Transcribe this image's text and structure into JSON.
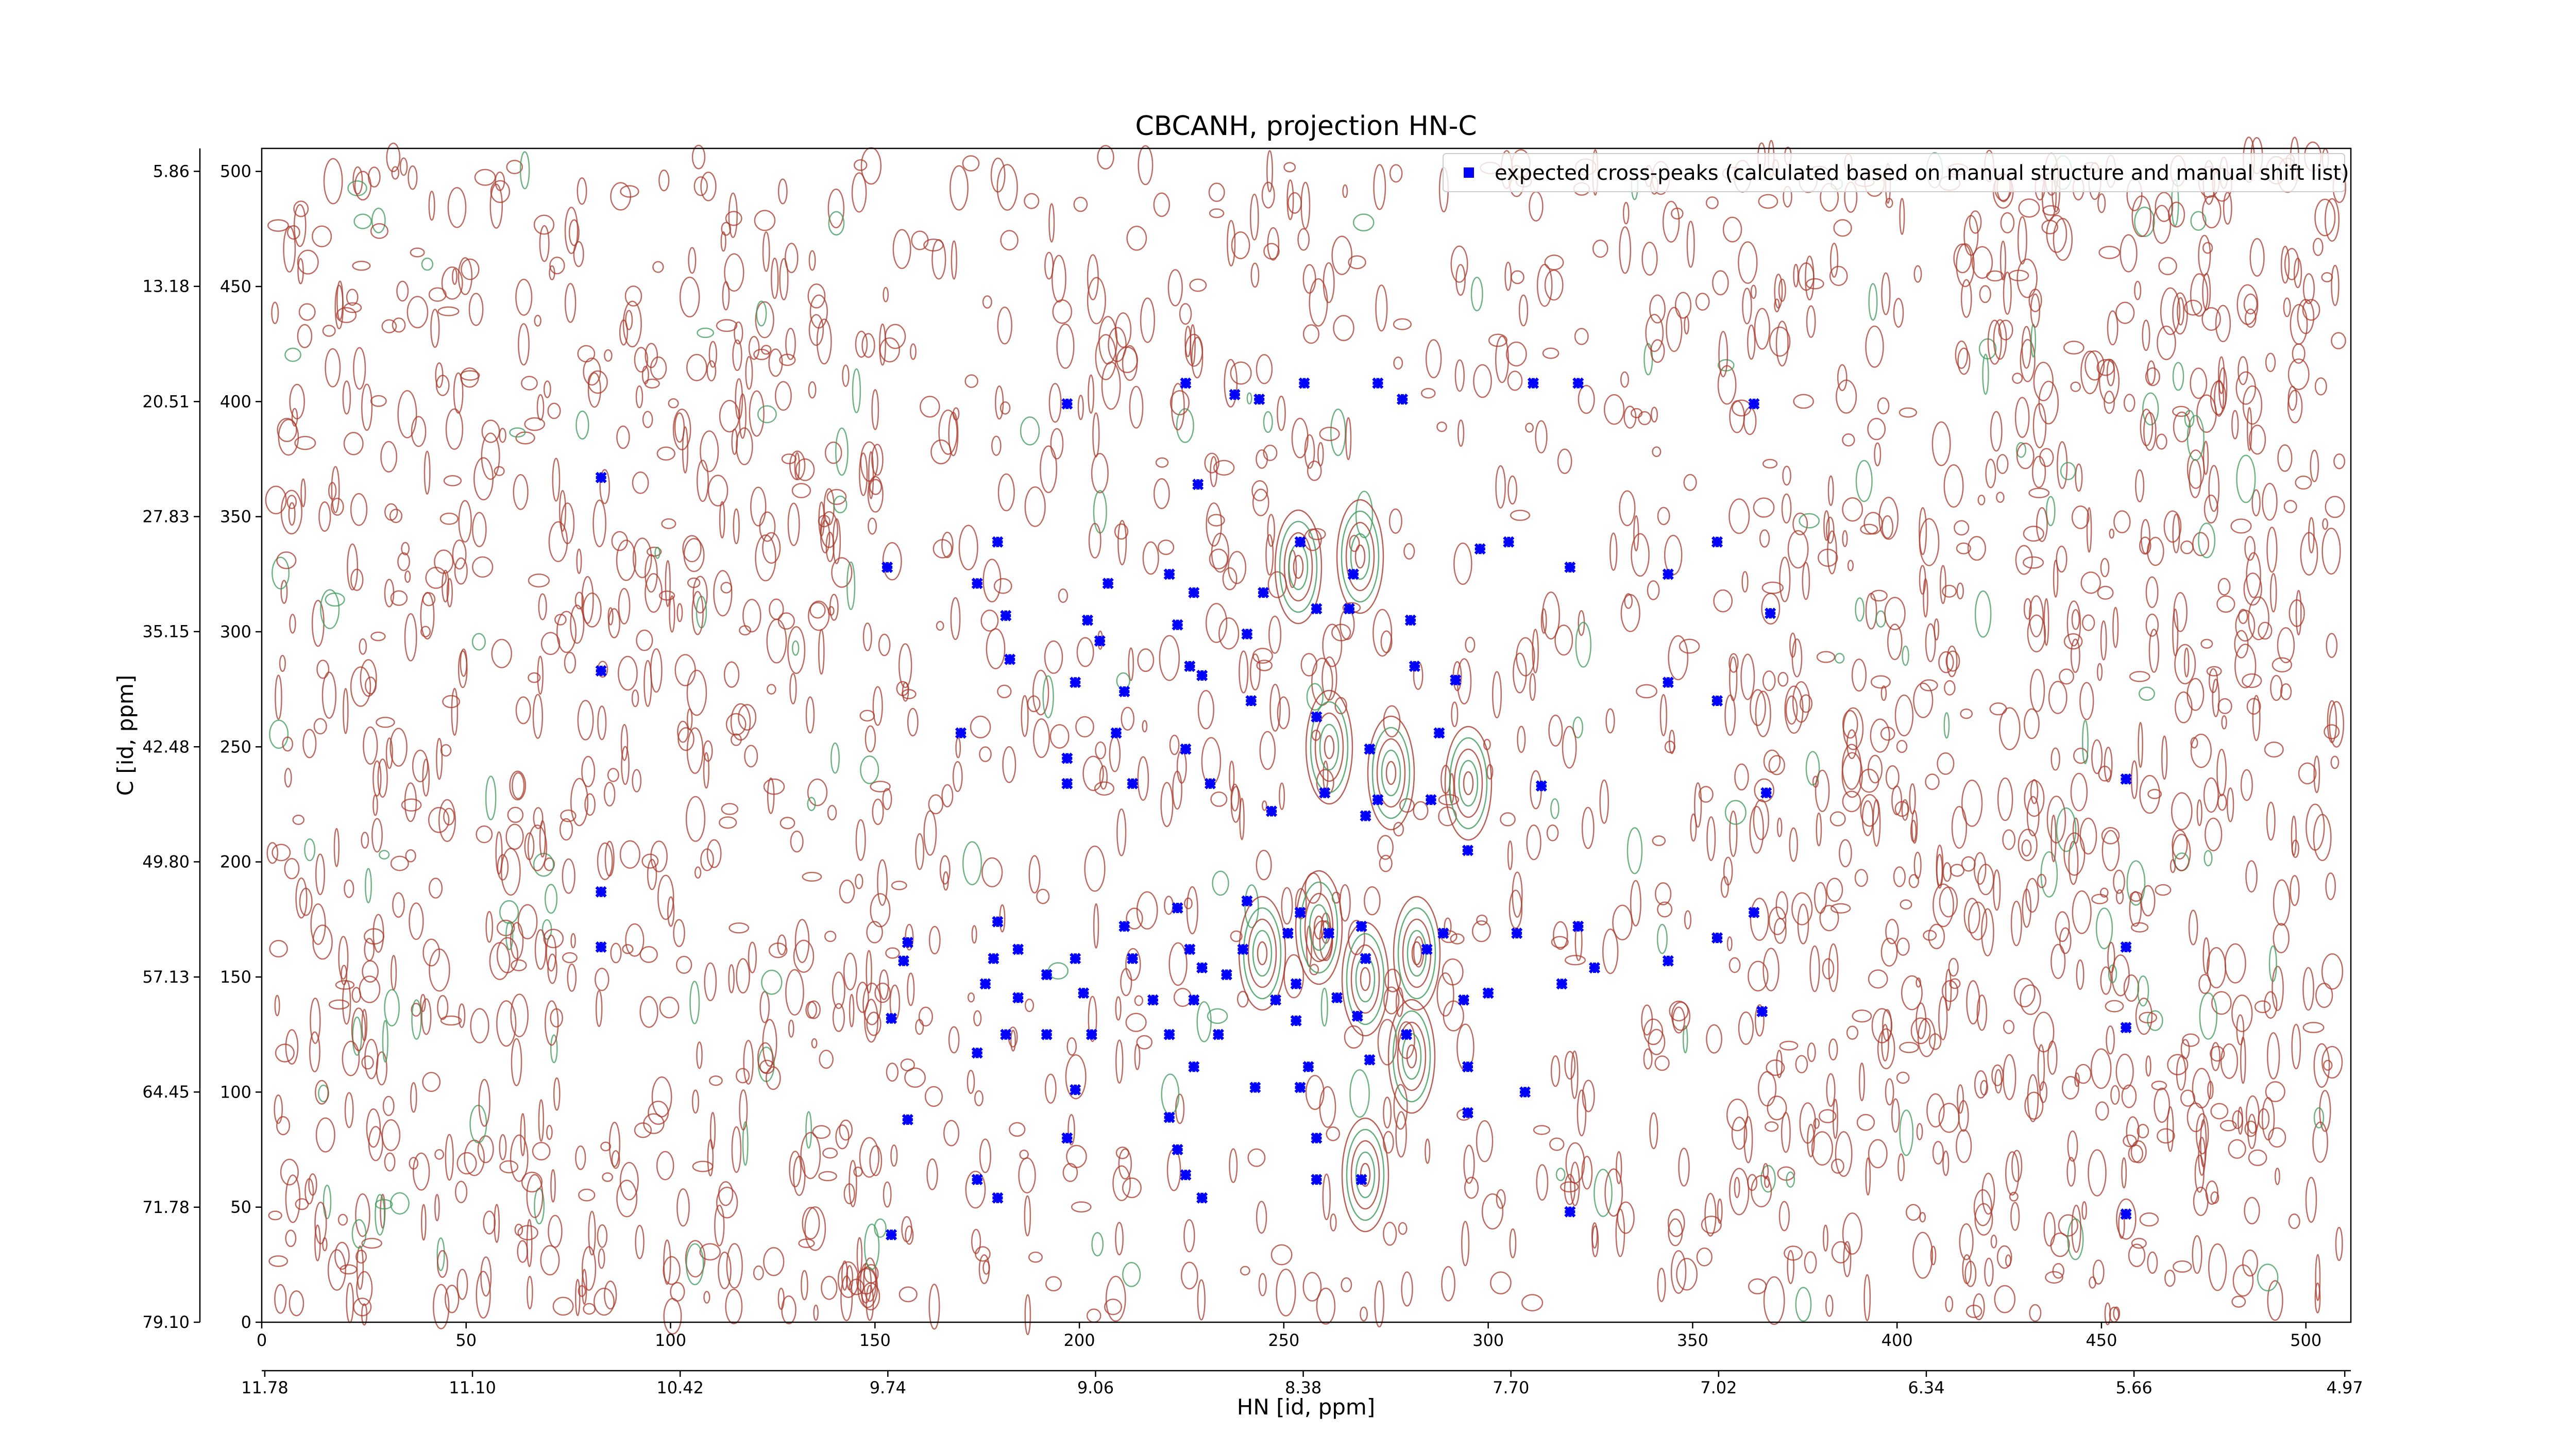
{
  "chart_data": {
    "type": "scatter",
    "title": "CBCANH, projection HN-C",
    "xlabel": "HN [id, ppm]",
    "ylabel": "C [id, ppm]",
    "xlim": [
      0,
      511
    ],
    "xticks": [
      0,
      50,
      100,
      150,
      200,
      250,
      300,
      350,
      400,
      450,
      500
    ],
    "ylim": [
      0,
      510
    ],
    "yticks": [
      0,
      50,
      100,
      150,
      200,
      250,
      300,
      350,
      400,
      450,
      500
    ],
    "x2lim": [
      11.79,
      4.95
    ],
    "x2ticks": [
      11.78,
      {
        "value": 11.1,
        "label": "11.10"
      },
      10.42,
      9.74,
      9.06,
      8.38,
      {
        "value": 7.7,
        "label": "7.70"
      },
      7.02,
      6.34,
      5.66,
      4.97
    ],
    "y2lim": [
      79.1,
      4.4
    ],
    "y2ticks": [
      {
        "value": 79.1,
        "label": "79.10"
      },
      71.78,
      64.45,
      57.13,
      {
        "value": 49.8,
        "label": "49.80"
      },
      42.48,
      35.15,
      27.83,
      20.51,
      13.18,
      5.86
    ],
    "legend": "upper right",
    "series": [
      {
        "name": "expected cross-peaks (calculated based on manual structure and manual shift list)",
        "color": "#0000ff",
        "x": [
          83,
          83,
          83,
          83,
          153,
          154,
          158,
          154,
          157,
          158,
          171,
          175,
          180,
          182,
          183,
          180,
          179,
          185,
          177,
          175,
          182,
          185,
          175,
          180,
          192,
          192,
          197,
          199,
          197,
          197,
          199,
          201,
          203,
          199,
          197,
          202,
          205,
          207,
          211,
          213,
          209,
          211,
          213,
          218,
          222,
          222,
          224,
          227,
          228,
          229,
          226,
          230,
          232,
          226,
          222,
          224,
          226,
          230,
          224,
          227,
          230,
          228,
          228,
          234,
          236,
          240,
          241,
          238,
          244,
          242,
          243,
          241,
          245,
          247,
          248,
          251,
          253,
          254,
          253,
          255,
          254,
          258,
          258,
          260,
          256,
          254,
          258,
          258,
          261,
          263,
          266,
          267,
          271,
          270,
          269,
          270,
          268,
          271,
          269,
          273,
          273,
          279,
          281,
          282,
          280,
          285,
          286,
          288,
          289,
          292,
          294,
          295,
          295,
          295,
          298,
          300,
          305,
          307,
          309,
          311,
          313,
          318,
          320,
          322,
          322,
          326,
          320,
          344,
          344,
          344,
          356,
          356,
          356,
          365,
          365,
          367,
          368,
          369,
          456,
          456,
          456,
          456
        ],
        "values": [
          367,
          283,
          187,
          163,
          328,
          38,
          88,
          132,
          157,
          165,
          256,
          321,
          339,
          307,
          288,
          174,
          158,
          162,
          147,
          117,
          125,
          141,
          62,
          54,
          151,
          125,
          399,
          278,
          245,
          234,
          158,
          143,
          125,
          101,
          80,
          305,
          296,
          321,
          274,
          234,
          256,
          172,
          158,
          140,
          125,
          325,
          303,
          285,
          317,
          364,
          408,
          281,
          234,
          249,
          89,
          75,
          64,
          54,
          180,
          162,
          154,
          140,
          111,
          125,
          151,
          162,
          183,
          403,
          401,
          270,
          102,
          299,
          317,
          222,
          140,
          169,
          147,
          178,
          131,
          408,
          339,
          310,
          263,
          230,
          111,
          102,
          80,
          62,
          169,
          141,
          310,
          325,
          249,
          220,
          172,
          158,
          133,
          114,
          62,
          408,
          227,
          401,
          305,
          285,
          125,
          162,
          227,
          256,
          169,
          279,
          140,
          205,
          111,
          91,
          336,
          143,
          339,
          169,
          100,
          408,
          233,
          147,
          328,
          408,
          172,
          154,
          48,
          278,
          325,
          157,
          339,
          270,
          167,
          399,
          178,
          135,
          230,
          308,
          236,
          163,
          128,
          47
        ]
      }
    ]
  }
}
